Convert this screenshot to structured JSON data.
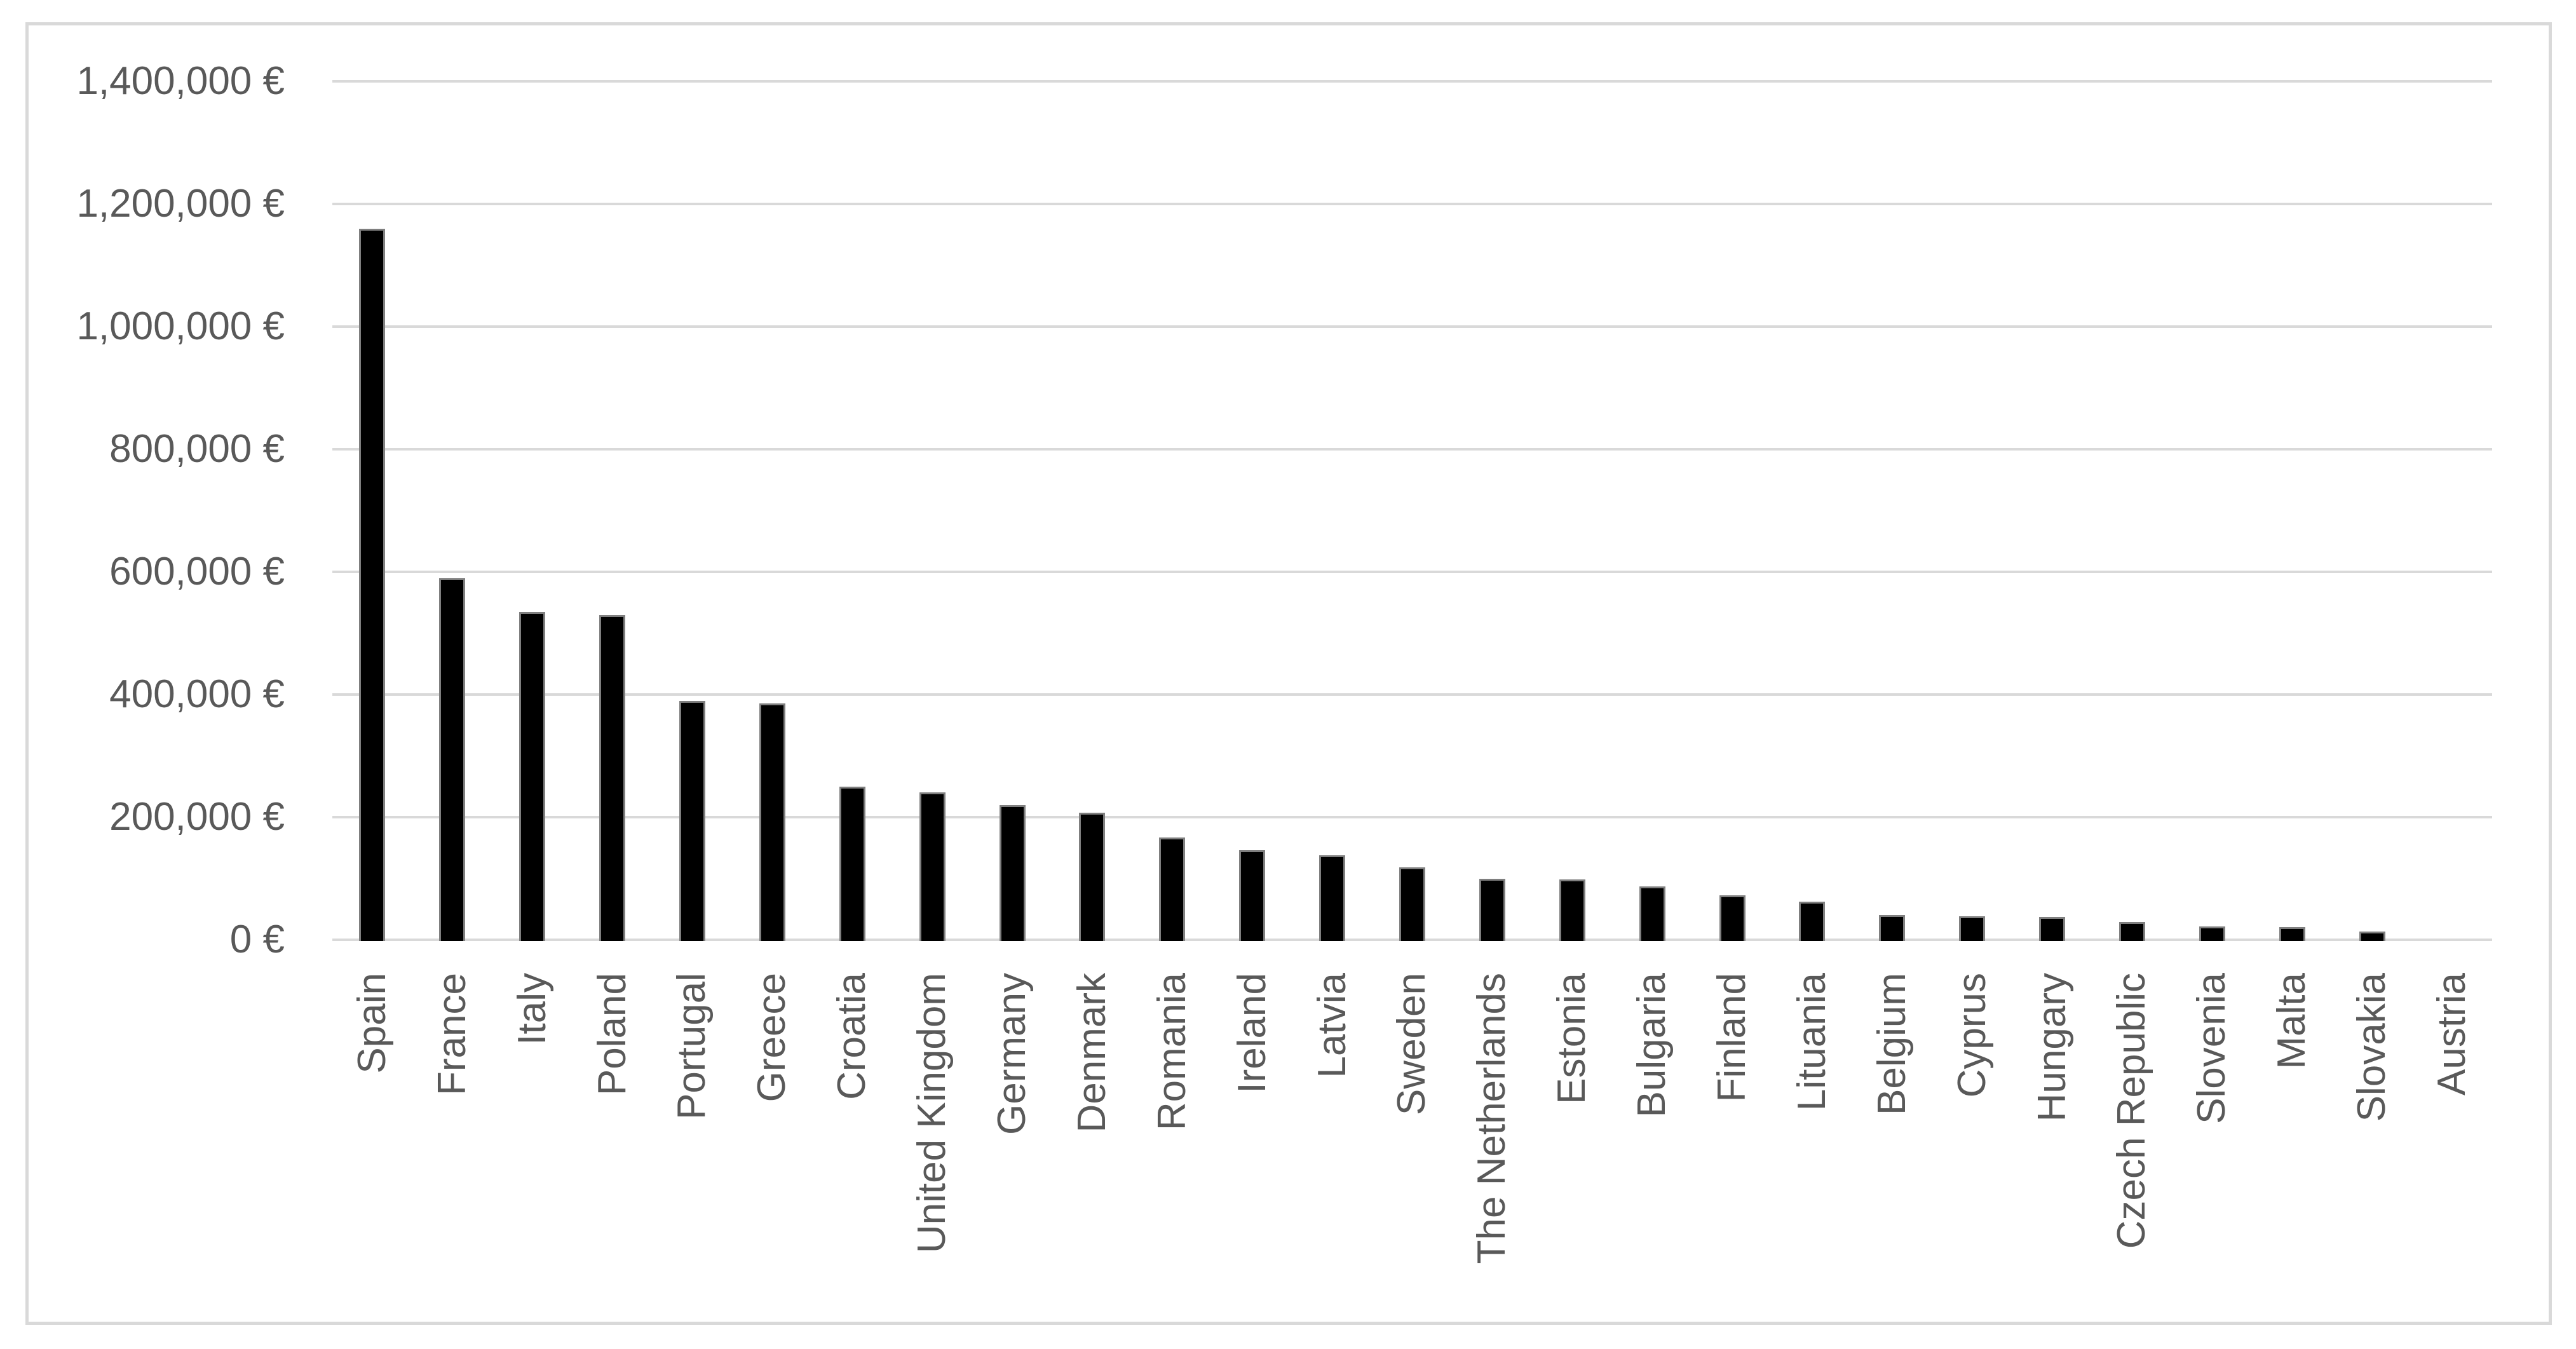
{
  "chart_data": {
    "type": "bar",
    "title": "",
    "xlabel": "",
    "ylabel": "",
    "categories": [
      "Spain",
      "France",
      "Italy",
      "Poland",
      "Portugal",
      "Greece",
      "Croatia",
      "United Kingdom",
      "Germany",
      "Denmark",
      "Romania",
      "Ireland",
      "Latvia",
      "Sweden",
      "The Netherlands",
      "Estonia",
      "Bulgaria",
      "Finland",
      "Lituania",
      "Belgium",
      "Cyprus",
      "Hungary",
      "Czech Republic",
      "Slovenia",
      "Malta",
      "Slovakia",
      "Austria"
    ],
    "values": [
      1160000,
      590000,
      535000,
      530000,
      390000,
      385000,
      250000,
      240000,
      220000,
      207000,
      167000,
      146000,
      138000,
      118000,
      100000,
      98000,
      87000,
      73000,
      62000,
      40000,
      38000,
      37000,
      29000,
      22000,
      21000,
      13000,
      0
    ],
    "ylim": [
      0,
      1400000
    ],
    "ytick_interval": 200000,
    "ytick_labels": [
      "0 €",
      "200,000 €",
      "400,000 €",
      "600,000 €",
      "800,000 €",
      "1,000,000 €",
      "1,200,000 €",
      "1,400,000 €"
    ],
    "legend": "none",
    "grid": "horizontal",
    "x_label_rotation_degrees": 90,
    "colors": {
      "bar_fill": "#000000",
      "bar_border": "#7F7F7F",
      "gridline": "#D9D9D9",
      "frame_border": "#D9D9D9",
      "tick_label": "#595959",
      "background": "#FFFFFF"
    }
  }
}
